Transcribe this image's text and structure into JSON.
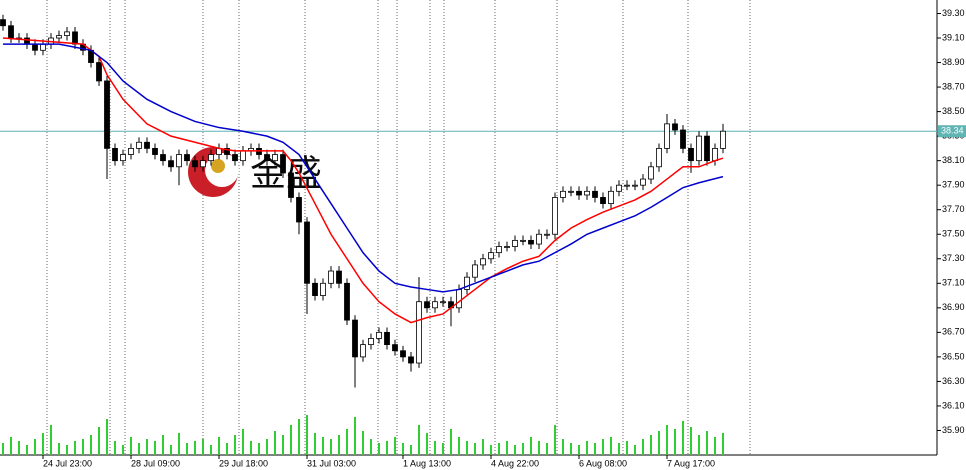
{
  "chart_data": {
    "type": "candlestick",
    "categories": [
      null,
      null,
      null,
      null,
      null,
      "24 Jul 23:00",
      null,
      null,
      null,
      null,
      null,
      null,
      null,
      null,
      null,
      null,
      "28 Jul 09:00",
      null,
      null,
      null,
      null,
      null,
      null,
      null,
      null,
      null,
      null,
      "29 Jul 18:00",
      null,
      null,
      null,
      null,
      null,
      null,
      null,
      null,
      null,
      null,
      "31 Jul 03:00",
      null,
      null,
      null,
      null,
      null,
      null,
      null,
      null,
      null,
      null,
      null,
      "1 Aug 13:00",
      null,
      null,
      null,
      null,
      null,
      null,
      null,
      null,
      null,
      null,
      "4 Aug 22:00",
      null,
      null,
      null,
      null,
      null,
      null,
      null,
      null,
      null,
      null,
      "6 Aug 08:00",
      null,
      null,
      null,
      null,
      null,
      null,
      null,
      null,
      null,
      null,
      "7 Aug 17:00",
      null,
      null,
      null,
      null,
      null,
      null,
      null
    ],
    "open": [
      39.25,
      39.2,
      39.1,
      39.1,
      39.05,
      39.0,
      39.05,
      39.1,
      39.12,
      39.15,
      39.05,
      39.0,
      38.9,
      38.75,
      38.2,
      38.1,
      38.15,
      38.2,
      38.25,
      38.2,
      38.15,
      38.1,
      38.05,
      38.15,
      38.1,
      38.05,
      38.1,
      38.15,
      38.2,
      38.15,
      38.1,
      38.18,
      38.2,
      38.15,
      38.1,
      38.15,
      38.0,
      37.8,
      37.6,
      37.1,
      37.0,
      37.1,
      37.2,
      37.1,
      36.8,
      36.5,
      36.6,
      36.65,
      36.7,
      36.6,
      36.55,
      36.5,
      36.45,
      36.95,
      36.9,
      36.95,
      36.95,
      36.9,
      37.05,
      37.15,
      37.25,
      37.3,
      37.35,
      37.4,
      37.4,
      37.45,
      37.45,
      37.42,
      37.5,
      37.5,
      37.8,
      37.85,
      37.85,
      37.82,
      37.85,
      37.8,
      37.75,
      37.85,
      37.9,
      37.9,
      37.9,
      37.95,
      38.05,
      38.2,
      38.4,
      38.35,
      38.2,
      38.1,
      38.3,
      38.1,
      38.2
    ],
    "high": [
      39.29,
      39.24,
      39.14,
      39.14,
      39.09,
      39.09,
      39.14,
      39.16,
      39.19,
      39.19,
      39.09,
      39.04,
      38.94,
      38.79,
      38.24,
      38.19,
      38.24,
      38.29,
      38.29,
      38.24,
      38.19,
      38.14,
      38.19,
      38.19,
      38.14,
      38.14,
      38.19,
      38.24,
      38.24,
      38.19,
      38.22,
      38.24,
      38.24,
      38.19,
      38.19,
      38.19,
      38.04,
      37.84,
      37.64,
      37.14,
      37.14,
      37.24,
      37.24,
      37.14,
      36.84,
      36.64,
      36.69,
      36.74,
      36.74,
      36.64,
      36.59,
      36.54,
      37.15,
      36.99,
      36.99,
      36.99,
      36.99,
      37.09,
      37.19,
      37.29,
      37.34,
      37.39,
      37.44,
      37.44,
      37.49,
      37.49,
      37.49,
      37.54,
      37.54,
      37.84,
      37.89,
      37.89,
      37.89,
      37.89,
      37.89,
      37.84,
      37.89,
      37.94,
      37.94,
      37.94,
      37.99,
      38.09,
      38.24,
      38.48,
      38.44,
      38.39,
      38.24,
      38.34,
      38.34,
      38.24,
      38.4
    ],
    "low": [
      39.16,
      39.06,
      39.06,
      39.01,
      38.96,
      38.96,
      39.01,
      39.06,
      39.08,
      39.01,
      38.96,
      38.86,
      38.71,
      37.95,
      38.06,
      38.06,
      38.11,
      38.16,
      38.16,
      38.11,
      38.06,
      38.01,
      37.9,
      38.06,
      38.01,
      38.01,
      38.06,
      38.11,
      38.11,
      38.06,
      38.06,
      38.14,
      38.11,
      38.06,
      38.06,
      37.96,
      37.76,
      37.5,
      36.85,
      36.96,
      36.96,
      37.06,
      37.06,
      36.76,
      36.25,
      36.46,
      36.56,
      36.61,
      36.56,
      36.51,
      36.46,
      36.38,
      36.41,
      36.86,
      36.86,
      36.91,
      36.75,
      36.86,
      37.01,
      37.11,
      37.21,
      37.26,
      37.31,
      37.36,
      37.36,
      37.41,
      37.38,
      37.38,
      37.46,
      37.46,
      37.76,
      37.81,
      37.78,
      37.78,
      37.76,
      37.71,
      37.71,
      37.81,
      37.86,
      37.86,
      37.86,
      37.91,
      38.01,
      38.16,
      38.31,
      38.16,
      38.0,
      38.06,
      38.06,
      38.06,
      38.16
    ],
    "close": [
      39.2,
      39.1,
      39.1,
      39.05,
      39.0,
      39.05,
      39.1,
      39.12,
      39.15,
      39.05,
      39.0,
      38.9,
      38.75,
      38.2,
      38.1,
      38.15,
      38.2,
      38.25,
      38.2,
      38.15,
      38.1,
      38.05,
      38.15,
      38.1,
      38.05,
      38.1,
      38.15,
      38.2,
      38.15,
      38.1,
      38.18,
      38.2,
      38.15,
      38.1,
      38.15,
      38.0,
      37.8,
      37.6,
      37.1,
      37.0,
      37.1,
      37.2,
      37.1,
      36.8,
      36.5,
      36.6,
      36.65,
      36.7,
      36.6,
      36.55,
      36.5,
      36.45,
      36.95,
      36.9,
      36.95,
      36.95,
      36.9,
      37.05,
      37.15,
      37.25,
      37.3,
      37.35,
      37.4,
      37.4,
      37.45,
      37.45,
      37.42,
      37.5,
      37.5,
      37.8,
      37.85,
      37.85,
      37.82,
      37.85,
      37.8,
      37.75,
      37.85,
      37.9,
      37.9,
      37.9,
      37.95,
      38.05,
      38.2,
      38.4,
      38.35,
      38.2,
      38.1,
      38.3,
      38.1,
      38.2,
      38.34
    ],
    "volume": [
      12,
      18,
      14,
      10,
      16,
      22,
      30,
      12,
      10,
      14,
      16,
      20,
      28,
      36,
      14,
      10,
      18,
      12,
      16,
      14,
      20,
      10,
      22,
      12,
      14,
      16,
      10,
      18,
      12,
      20,
      26,
      14,
      12,
      16,
      24,
      20,
      30,
      36,
      40,
      22,
      18,
      16,
      20,
      26,
      38,
      24,
      16,
      12,
      14,
      18,
      12,
      10,
      30,
      22,
      14,
      12,
      26,
      18,
      14,
      12,
      16,
      10,
      12,
      14,
      10,
      12,
      18,
      14,
      12,
      30,
      16,
      12,
      10,
      14,
      12,
      16,
      18,
      12,
      14,
      10,
      16,
      20,
      24,
      30,
      26,
      34,
      28,
      20,
      24,
      18,
      22
    ],
    "up_color": "#ffffff",
    "down_color": "#000000",
    "volume_color": "#32cd32",
    "series": [
      {
        "color": "#ff0000",
        "x": [
          0,
          10,
          12,
          13,
          15,
          18,
          21,
          24,
          27,
          29,
          35,
          36,
          37,
          39,
          41,
          43,
          45,
          47,
          49,
          51,
          53,
          55,
          57,
          59,
          61,
          63,
          65,
          67,
          69,
          71,
          73,
          75,
          77,
          79,
          81,
          83,
          85,
          87,
          89,
          90
        ],
        "values": [
          39.1,
          39.05,
          38.95,
          38.8,
          38.6,
          38.4,
          38.3,
          38.25,
          38.2,
          38.18,
          38.18,
          38.1,
          38.0,
          37.75,
          37.5,
          37.3,
          37.1,
          36.95,
          36.85,
          36.78,
          36.82,
          36.85,
          36.95,
          37.05,
          37.15,
          37.22,
          37.28,
          37.32,
          37.45,
          37.55,
          37.62,
          37.68,
          37.73,
          37.78,
          37.85,
          37.95,
          38.05,
          38.05,
          38.1,
          38.12
        ]
      },
      {
        "color": "#0000cd",
        "x": [
          0,
          7,
          11,
          13,
          15,
          18,
          21,
          24,
          27,
          30,
          33,
          35,
          37,
          39,
          41,
          43,
          45,
          47,
          49,
          51,
          53,
          55,
          57,
          59,
          61,
          63,
          65,
          67,
          69,
          71,
          73,
          75,
          77,
          79,
          81,
          83,
          85,
          87,
          90
        ],
        "values": [
          39.05,
          39.05,
          39.0,
          38.9,
          38.75,
          38.6,
          38.5,
          38.42,
          38.37,
          38.34,
          38.3,
          38.25,
          38.15,
          37.95,
          37.75,
          37.55,
          37.35,
          37.2,
          37.1,
          37.07,
          37.05,
          37.03,
          37.05,
          37.1,
          37.15,
          37.2,
          37.25,
          37.28,
          37.35,
          37.42,
          37.5,
          37.55,
          37.6,
          37.65,
          37.72,
          37.8,
          37.88,
          37.92,
          37.97
        ]
      }
    ],
    "price_line": {
      "value": 38.34,
      "label": "38.34",
      "color": "#5fb4b4"
    },
    "watermark": "金盛",
    "ylim": [
      35.7,
      39.41
    ],
    "yticks": [
      {
        "value": 39.3,
        "label": "39.30"
      },
      {
        "value": 39.1,
        "label": "39.10"
      },
      {
        "value": 38.9,
        "label": "38.90"
      },
      {
        "value": 38.7,
        "label": "38.70"
      },
      {
        "value": 38.5,
        "label": "38.50"
      },
      {
        "value": 38.3,
        "label": "38.30"
      },
      {
        "value": 38.1,
        "label": "38.10"
      },
      {
        "value": 37.9,
        "label": "37.90"
      },
      {
        "value": 37.7,
        "label": "37.70"
      },
      {
        "value": 37.5,
        "label": "37.50"
      },
      {
        "value": 37.3,
        "label": "37.30"
      },
      {
        "value": 37.1,
        "label": "37.10"
      },
      {
        "value": 36.9,
        "label": "36.90"
      },
      {
        "value": 36.7,
        "label": "36.70"
      },
      {
        "value": 36.5,
        "label": "36.50"
      },
      {
        "value": 36.3,
        "label": "36.30"
      },
      {
        "value": 36.1,
        "label": "36.10"
      },
      {
        "value": 35.9,
        "label": "35.90"
      }
    ]
  }
}
